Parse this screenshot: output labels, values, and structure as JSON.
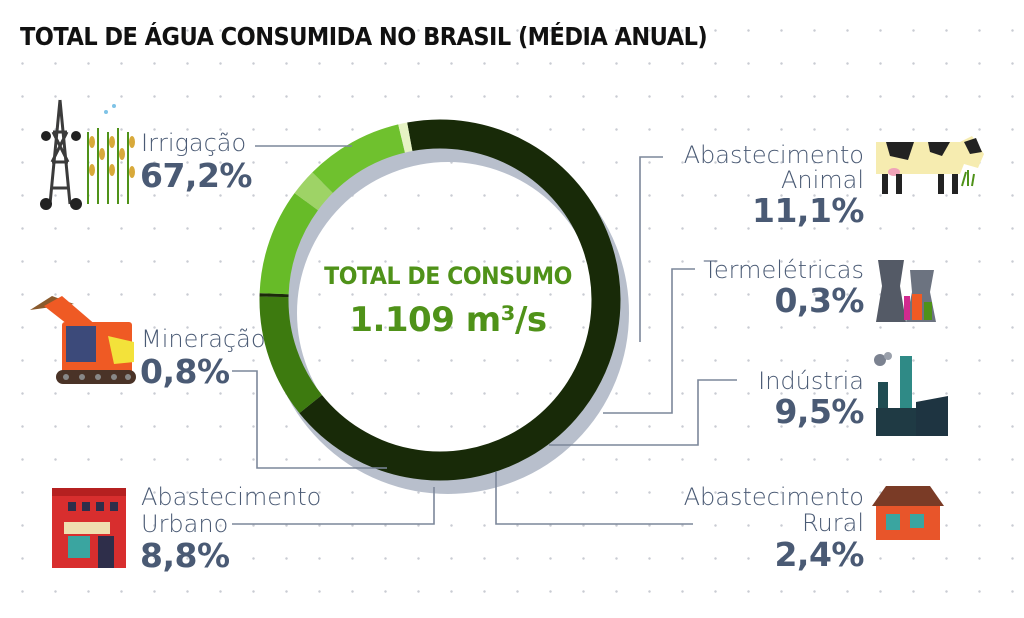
{
  "title": "TOTAL DE ÁGUA CONSUMIDA NO BRASIL (MÉDIA ANUAL)",
  "center": {
    "label": "TOTAL DE CONSUMO",
    "value": "1.109 m³/s"
  },
  "labels": {
    "irrigacao": {
      "name": "Irrigação",
      "pct": "67,2%"
    },
    "mineracao": {
      "name": "Mineração",
      "pct": "0,8%"
    },
    "urbano": {
      "name1": "Abastecimento",
      "name2": "Urbano",
      "pct": "8,8%"
    },
    "animal": {
      "name1": "Abastecimento",
      "name2": "Animal",
      "pct": "11,1%"
    },
    "termo": {
      "name": "Termelétricas",
      "pct": "0,3%"
    },
    "industria": {
      "name": "Indústria",
      "pct": "9,5%"
    },
    "rural": {
      "name1": "Abastecimento",
      "name2": "Rural",
      "pct": "2,4%"
    }
  },
  "chart_data": {
    "type": "pie",
    "variant": "donut",
    "title": "TOTAL DE ÁGUA CONSUMIDA NO BRASIL (MÉDIA ANUAL)",
    "total": {
      "label": "TOTAL DE CONSUMO",
      "value": 1109,
      "unit": "m³/s"
    },
    "categories": [
      "Irrigação",
      "Abastecimento Animal",
      "Termelétricas",
      "Indústria",
      "Abastecimento Rural",
      "Abastecimento Urbano",
      "Mineração"
    ],
    "values": [
      67.2,
      11.1,
      0.3,
      9.5,
      2.4,
      8.8,
      0.8
    ],
    "unit": "%",
    "colors": [
      "#182a08",
      "#3d7a0f",
      "#1c2a0a",
      "#67bb28",
      "#9ed366",
      "#6fc12e",
      "#e6f3c4"
    ],
    "shadow_color": "#b8bfcc"
  }
}
